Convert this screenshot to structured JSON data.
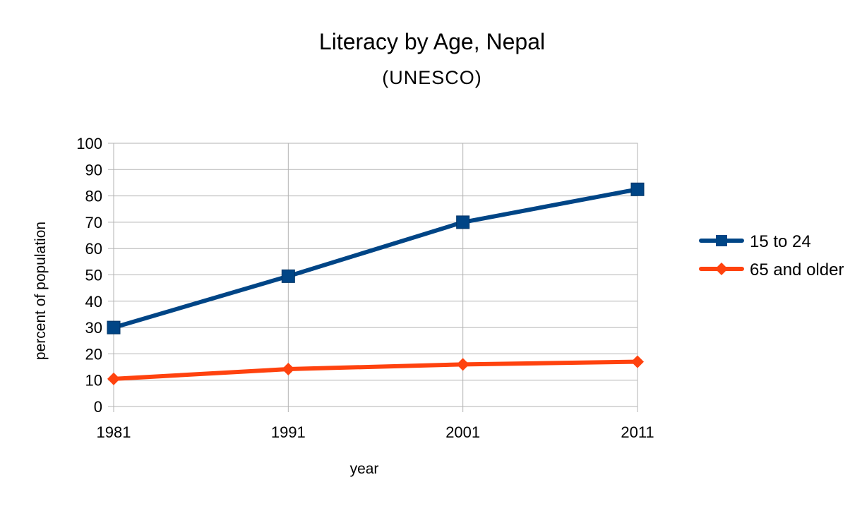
{
  "chart_data": {
    "type": "line",
    "title": "Literacy by Age, Nepal",
    "subtitle": "(UNESCO)",
    "xlabel": "year",
    "ylabel": "percent of population",
    "categories": [
      "1981",
      "1991",
      "2001",
      "2011"
    ],
    "ylim": [
      0,
      100
    ],
    "yticks": [
      0,
      10,
      20,
      30,
      40,
      50,
      60,
      70,
      80,
      90,
      100
    ],
    "grid": true,
    "legend_position": "right",
    "series": [
      {
        "name": "15 to 24",
        "values": [
          30,
          49.5,
          70,
          82.5
        ],
        "color": "#004586",
        "marker": "square"
      },
      {
        "name": "65 and older",
        "values": [
          10.5,
          14.2,
          16,
          17
        ],
        "color": "#ff420e",
        "marker": "diamond"
      }
    ]
  }
}
